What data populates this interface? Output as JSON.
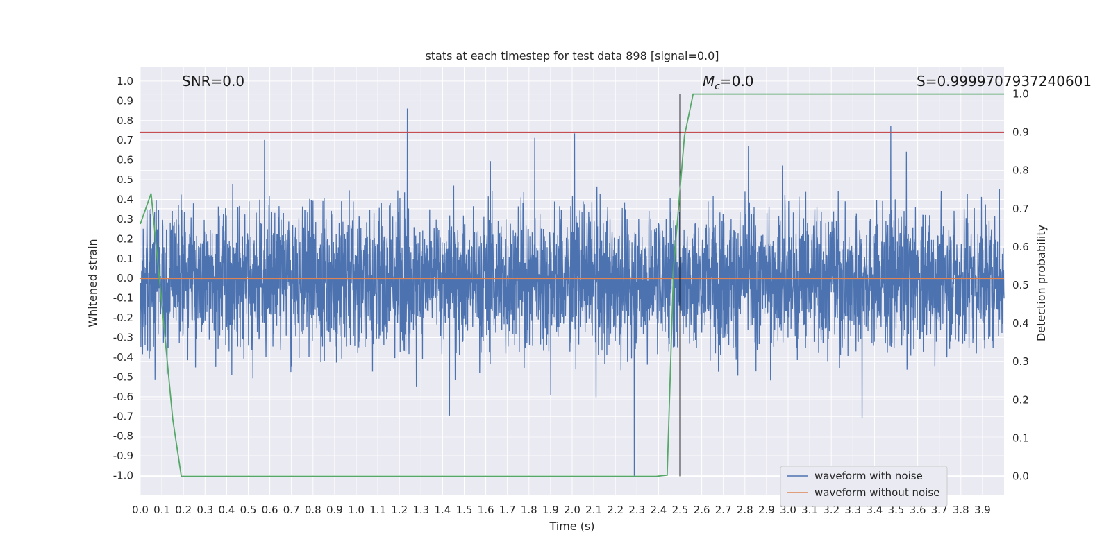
{
  "chart_data": {
    "type": "line",
    "title": "stats at each timestep for test data 898 [signal=0.0]",
    "xlabel": "Time (s)",
    "ylabel": "Whitened strain",
    "ylabel_right": "Detection probability",
    "xlim": [
      0.0,
      4.0
    ],
    "ylim": [
      -1.1,
      1.07
    ],
    "ylim_right": [
      -0.05,
      1.07
    ],
    "x_ticks": [
      "0.0",
      "0.1",
      "0.2",
      "0.3",
      "0.4",
      "0.5",
      "0.6",
      "0.7",
      "0.8",
      "0.9",
      "1.0",
      "1.1",
      "1.2",
      "1.3",
      "1.4",
      "1.5",
      "1.6",
      "1.7",
      "1.8",
      "1.9",
      "2.0",
      "2.1",
      "2.2",
      "2.3",
      "2.4",
      "2.5",
      "2.6",
      "2.7",
      "2.8",
      "2.9",
      "3.0",
      "3.1",
      "3.2",
      "3.3",
      "3.4",
      "3.5",
      "3.6",
      "3.7",
      "3.8",
      "3.9"
    ],
    "y_ticks": [
      "1.0",
      "0.9",
      "0.8",
      "0.7",
      "0.6",
      "0.5",
      "0.4",
      "0.3",
      "0.2",
      "0.1",
      "0.0",
      "-0.1",
      "-0.2",
      "-0.3",
      "-0.4",
      "-0.5",
      "-0.6",
      "-0.7",
      "-0.8",
      "-0.9",
      "-1.0"
    ],
    "y_ticks_right": [
      "1.0",
      "0.9",
      "0.8",
      "0.7",
      "0.6",
      "0.5",
      "0.4",
      "0.3",
      "0.2",
      "0.1",
      "0.0"
    ],
    "grid": true,
    "legend_placement": "lower-right",
    "annotations": {
      "snr": "SNR=0.0",
      "mc_symbol": "M",
      "mc_sub": "c",
      "mc_value": "=0.0",
      "s": "S=0.9999707937240601"
    },
    "series": [
      {
        "name": "waveform with noise",
        "color": "#4c72b0",
        "kind": "noise",
        "amplitude_range": [
          -1.0,
          0.95
        ]
      },
      {
        "name": "waveform without noise",
        "color": "#dd8452",
        "x": [
          0.0,
          4.0
        ],
        "y": [
          0.0,
          0.0
        ]
      }
    ],
    "threshold_line": {
      "color": "#c44e52",
      "y_right": 0.9
    },
    "event_line": {
      "color": "#000000",
      "x": 2.5
    },
    "probability_line": {
      "color": "#55a868",
      "x": [
        0.0,
        0.05,
        0.1,
        0.15,
        0.19,
        0.25,
        0.5,
        1.0,
        1.5,
        2.0,
        2.39,
        2.44,
        2.47,
        2.52,
        2.56,
        3.0,
        3.5,
        4.0
      ],
      "y_right": [
        0.66,
        0.74,
        0.45,
        0.15,
        0.0,
        0.0,
        0.0,
        0.0,
        0.0,
        0.0,
        0.0,
        0.003,
        0.55,
        0.89,
        1.0,
        1.0,
        1.0,
        1.0
      ]
    },
    "colors": {
      "background": "#eaeaf2",
      "grid": "#ffffff",
      "text": "#262626"
    }
  }
}
